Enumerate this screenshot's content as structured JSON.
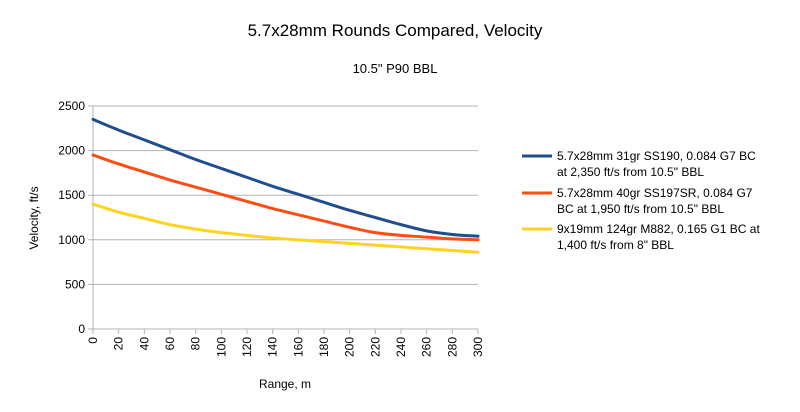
{
  "chart_data": {
    "type": "line",
    "title": "5.7x28mm Rounds Compared, Velocity",
    "subtitle": "10.5\" P90 BBL",
    "xlabel": "Range, m",
    "ylabel": "Velocity, ft/s",
    "xlim": [
      0,
      300
    ],
    "ylim": [
      0,
      2500
    ],
    "x_ticks": [
      "0",
      "20",
      "40",
      "60",
      "80",
      "100",
      "120",
      "140",
      "160",
      "180",
      "200",
      "220",
      "240",
      "260",
      "280",
      "300"
    ],
    "y_ticks": [
      "0",
      "500",
      "1000",
      "1500",
      "2000",
      "2500"
    ],
    "grid": "horizontal",
    "legend_position": "right",
    "x": [
      0,
      20,
      40,
      60,
      80,
      100,
      120,
      140,
      160,
      180,
      200,
      220,
      240,
      260,
      280,
      300
    ],
    "series": [
      {
        "name_lines": [
          "5.7x28mm 31gr SS190, 0.084 G7 BC",
          "at 2,350 ft/s from 10.5\" BBL"
        ],
        "color": "#1f4e8c",
        "values": [
          2350,
          2230,
          2120,
          2010,
          1900,
          1800,
          1700,
          1600,
          1510,
          1420,
          1330,
          1250,
          1170,
          1100,
          1060,
          1040
        ]
      },
      {
        "name_lines": [
          "5.7x28mm 40gr SS197SR, 0.084 G7",
          "BC at 1,950 ft/s from 10.5\" BBL"
        ],
        "color": "#ff4d14",
        "values": [
          1950,
          1850,
          1760,
          1670,
          1590,
          1510,
          1430,
          1350,
          1280,
          1210,
          1140,
          1080,
          1050,
          1030,
          1010,
          1000
        ]
      },
      {
        "name_lines": [
          "9x19mm 124gr M882, 0.165 G1 BC at",
          "1,400 ft/s from 8\" BBL"
        ],
        "color": "#ffd320",
        "values": [
          1400,
          1310,
          1240,
          1170,
          1120,
          1080,
          1050,
          1020,
          1000,
          980,
          960,
          940,
          920,
          900,
          880,
          860
        ]
      }
    ]
  }
}
